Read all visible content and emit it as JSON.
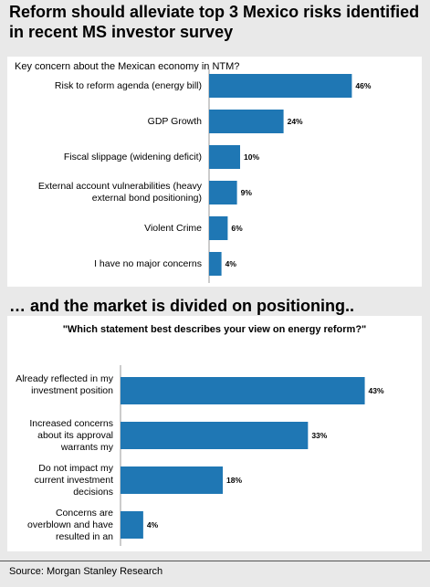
{
  "header": {
    "title": "Reform should alleviate top 3 Mexico risks identified in recent MS investor survey",
    "subtitle": "… and the market is divided on positioning.."
  },
  "footer": {
    "source": "Source: Morgan Stanley Research"
  },
  "colors": {
    "bar": "#1f77b4",
    "panel": "#ffffff",
    "background": "#e9e9e9"
  },
  "chart_data": [
    {
      "type": "bar",
      "orientation": "horizontal",
      "title": "Key concern about the Mexican economy in NTM?",
      "categories": [
        "Risk to reform agenda (energy bill)",
        "GDP Growth",
        "Fiscal slippage (widening deficit)",
        "External account vulnerabilities (heavy external bond positioning)",
        "Violent Crime",
        "I have no major concerns"
      ],
      "values": [
        46,
        24,
        10,
        9,
        6,
        4
      ],
      "labels": [
        "46%",
        "24%",
        "10%",
        "9%",
        "6%",
        "4%"
      ],
      "unit": "%",
      "xlim": [
        0,
        50
      ],
      "grid": false
    },
    {
      "type": "bar",
      "orientation": "horizontal",
      "title": "\"Which statement best describes your view on energy reform?\"",
      "categories": [
        "Already reflected in my investment position",
        "Increased concerns about its approval warrants my",
        "Do not impact my current investment decisions",
        "Concerns are overblown and have resulted in an"
      ],
      "values": [
        43,
        33,
        18,
        4
      ],
      "labels": [
        "43%",
        "33%",
        "18%",
        "4%"
      ],
      "unit": "%",
      "xlim": [
        0,
        45
      ],
      "grid": false
    }
  ]
}
